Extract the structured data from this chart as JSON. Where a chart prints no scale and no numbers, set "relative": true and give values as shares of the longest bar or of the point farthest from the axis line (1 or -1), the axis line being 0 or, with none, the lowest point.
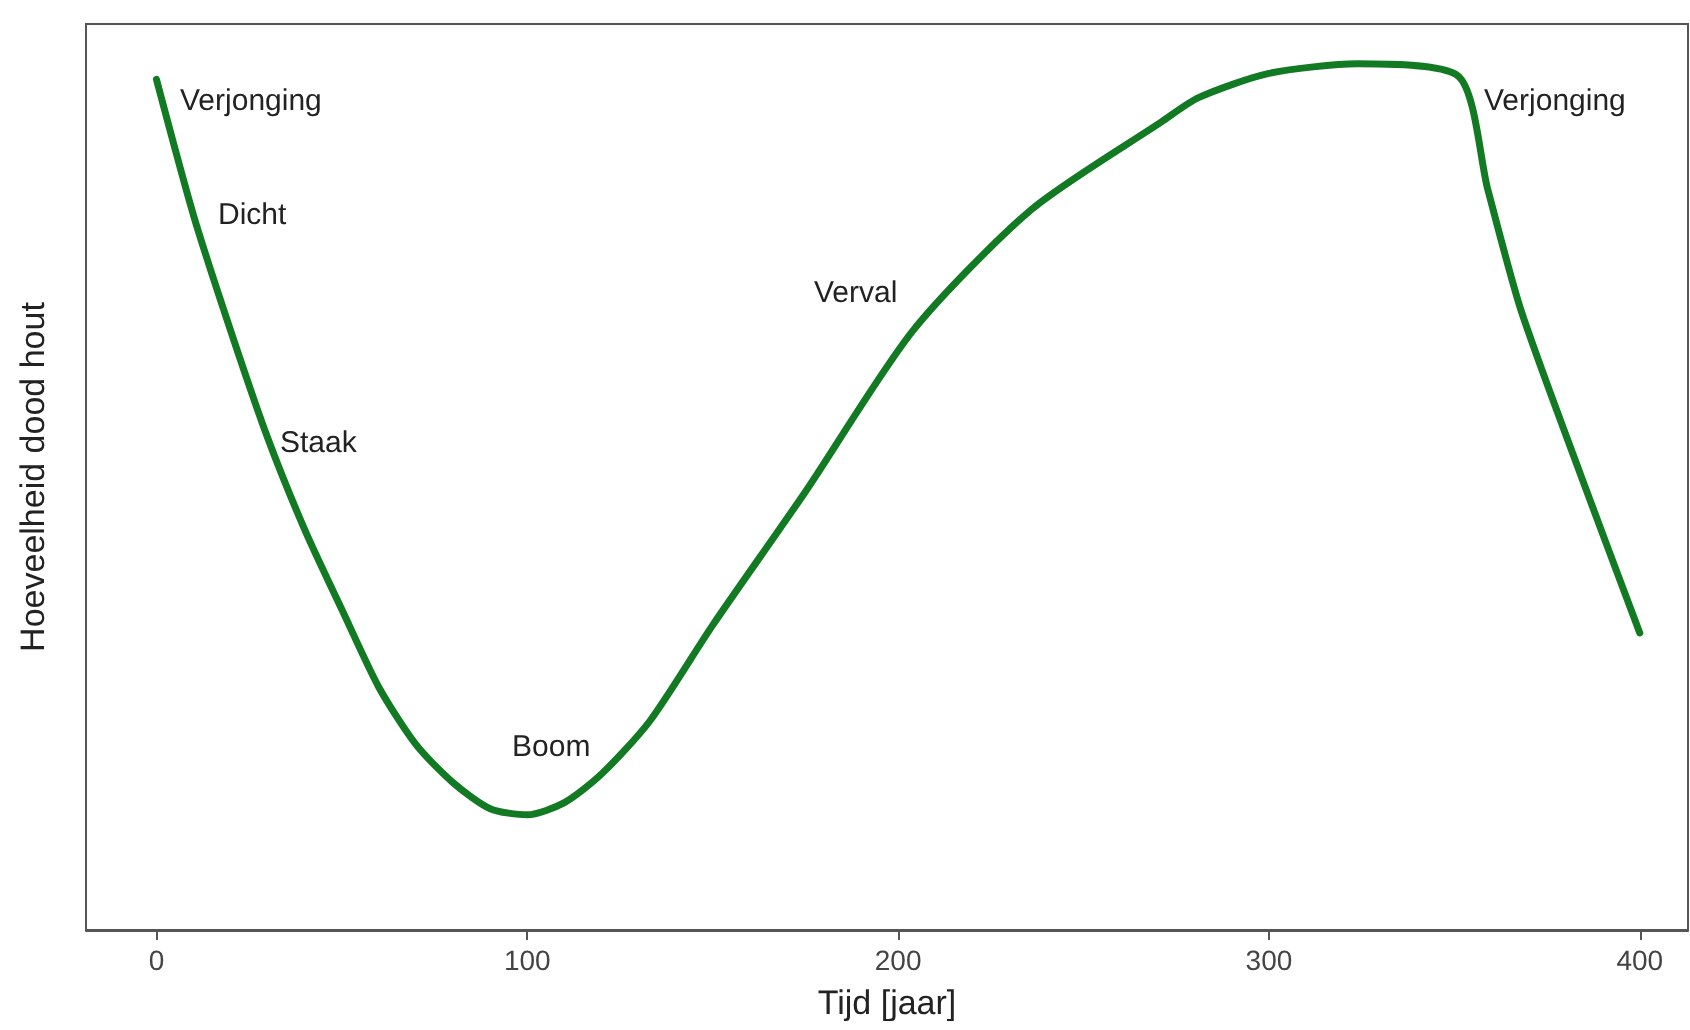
{
  "chart_data": {
    "type": "line",
    "relative": true,
    "xlabel": "Tijd [jaar]",
    "ylabel": "Hoeveelheid dood hout",
    "xlim": [
      -19,
      413
    ],
    "xticks": [
      0,
      100,
      200,
      300,
      400
    ],
    "grid": false,
    "marker": "none",
    "line_style": "solid",
    "series": [
      {
        "color": "#137a24",
        "x": [
          0,
          10,
          20,
          30,
          40,
          50,
          60,
          70,
          80,
          90,
          100,
          110,
          120,
          133,
          150,
          175,
          204,
          236,
          271,
          281,
          300,
          324,
          351,
          359,
          368,
          384,
          400
        ],
        "values": [
          0.982,
          0.825,
          0.692,
          0.568,
          0.462,
          0.37,
          0.28,
          0.214,
          0.17,
          0.14,
          0.133,
          0.147,
          0.18,
          0.241,
          0.352,
          0.506,
          0.692,
          0.832,
          0.933,
          0.961,
          0.989,
          1,
          0.986,
          0.855,
          0.715,
          0.526,
          0.343
        ]
      }
    ],
    "annotations": [
      "Verjonging",
      "Dicht",
      "Staak",
      "Boom",
      "Verval",
      "Verjonging"
    ]
  }
}
